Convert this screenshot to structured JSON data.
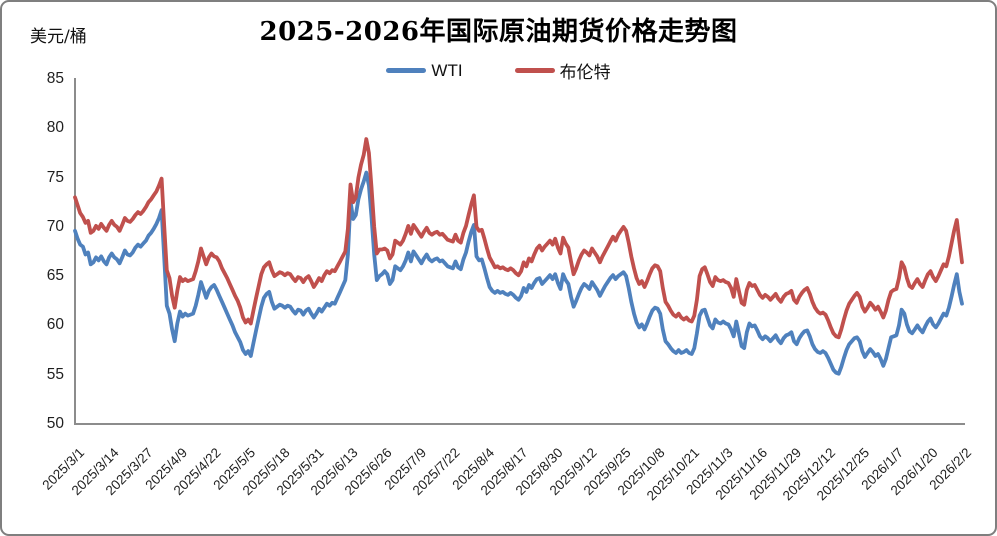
{
  "title": "2025-2026年国际原油期货价格走势图",
  "y_axis_unit_label": "美元/桶",
  "legend": [
    {
      "label": "WTI",
      "color": "#4F81BD"
    },
    {
      "label": "布伦特",
      "color": "#C0504D"
    }
  ],
  "colors": {
    "wti_line": "#4F81BD",
    "brent_line": "#C0504D",
    "axis": "#8C8C8C",
    "frame_border": "#7F7F7F",
    "text": "#1F1F1F"
  },
  "chart_data": {
    "type": "line",
    "title": "2025-2026年国际原油期货价格走势图",
    "ylabel": "美元/桶",
    "xlabel": "",
    "ylim": [
      50,
      85
    ],
    "y_ticks": [
      50,
      55,
      60,
      65,
      70,
      75,
      80,
      85
    ],
    "grid": false,
    "legend_position": "top-center",
    "x_start_date": "2025/3/1",
    "x_end_date": "2026/2/2",
    "x_resolution": "daily",
    "x_tick_interval_days": 13,
    "x_tick_labels": [
      "2025/3/1",
      "2025/3/14",
      "2025/3/27",
      "2025/4/9",
      "2025/4/22",
      "2025/5/5",
      "2025/5/18",
      "2025/5/31",
      "2025/6/13",
      "2025/6/26",
      "2025/7/9",
      "2025/7/22",
      "2025/8/4",
      "2025/8/17",
      "2025/8/30",
      "2025/9/12",
      "2025/9/25",
      "2025/10/8",
      "2025/10/21",
      "2025/11/3",
      "2025/11/16",
      "2025/11/29",
      "2025/12/12",
      "2025/12/25",
      "2026/1/7",
      "2026/1/20",
      "2026/2/2"
    ],
    "series": [
      {
        "name": "WTI",
        "color": "#4F81BD",
        "values": [
          69.6,
          68.8,
          68.2,
          68.0,
          67.2,
          67.4,
          66.2,
          66.4,
          66.9,
          66.6,
          67.0,
          66.5,
          66.2,
          66.9,
          67.3,
          66.9,
          66.7,
          66.3,
          66.9,
          67.6,
          67.2,
          67.1,
          67.4,
          67.9,
          68.2,
          68.0,
          68.3,
          68.6,
          69.1,
          69.4,
          69.8,
          70.3,
          70.9,
          71.7,
          66.9,
          62.0,
          61.2,
          59.6,
          58.4,
          60.2,
          61.4,
          60.9,
          61.2,
          61.0,
          61.1,
          61.2,
          62.0,
          63.1,
          64.4,
          63.6,
          62.8,
          63.5,
          63.9,
          64.1,
          63.6,
          63.0,
          62.4,
          61.8,
          61.2,
          60.6,
          60.0,
          59.3,
          58.8,
          58.3,
          57.5,
          57.1,
          57.4,
          56.9,
          58.2,
          59.5,
          60.7,
          61.9,
          62.8,
          63.2,
          63.4,
          62.4,
          61.7,
          61.9,
          62.1,
          62.0,
          61.8,
          62.0,
          61.9,
          61.5,
          61.2,
          61.6,
          61.5,
          61.1,
          61.5,
          61.7,
          61.2,
          60.8,
          61.2,
          61.7,
          61.4,
          61.8,
          62.2,
          62.0,
          62.3,
          62.2,
          62.8,
          63.4,
          64.0,
          64.6,
          67.2,
          72.6,
          70.8,
          71.2,
          72.8,
          73.8,
          74.6,
          75.5,
          74.2,
          71.0,
          67.2,
          64.6,
          65.0,
          65.2,
          65.5,
          65.2,
          64.2,
          64.6,
          66.0,
          65.8,
          65.6,
          66.0,
          66.6,
          67.4,
          66.5,
          67.5,
          67.1,
          66.7,
          66.3,
          66.8,
          67.2,
          66.7,
          66.5,
          66.7,
          66.8,
          66.5,
          66.6,
          66.3,
          66.0,
          65.9,
          65.8,
          66.5,
          65.9,
          65.7,
          66.7,
          67.4,
          68.5,
          69.5,
          70.2,
          67.0,
          66.6,
          66.7,
          65.8,
          64.8,
          63.9,
          63.5,
          63.3,
          63.5,
          63.3,
          63.4,
          63.2,
          63.1,
          63.3,
          63.1,
          62.8,
          62.6,
          63.0,
          63.8,
          63.4,
          64.1,
          63.8,
          64.3,
          64.7,
          64.8,
          64.2,
          64.5,
          64.8,
          65.1,
          64.7,
          65.2,
          64.3,
          63.7,
          65.2,
          64.6,
          64.2,
          62.9,
          61.9,
          62.5,
          63.2,
          63.8,
          64.2,
          64.0,
          63.7,
          64.4,
          64.0,
          63.6,
          63.0,
          63.5,
          64.0,
          64.4,
          64.8,
          65.1,
          64.7,
          65.0,
          65.2,
          65.4,
          65.0,
          63.8,
          62.4,
          61.2,
          60.3,
          59.8,
          60.1,
          59.6,
          60.2,
          60.9,
          61.5,
          61.8,
          61.7,
          61.2,
          59.6,
          58.4,
          58.1,
          57.7,
          57.4,
          57.2,
          57.5,
          57.2,
          57.3,
          57.5,
          57.2,
          57.1,
          57.7,
          59.2,
          61.0,
          61.5,
          61.6,
          60.8,
          60.0,
          59.7,
          60.6,
          60.3,
          60.2,
          60.4,
          60.2,
          60.1,
          59.6,
          58.9,
          60.4,
          59.2,
          57.9,
          57.7,
          59.3,
          60.2,
          59.9,
          60.0,
          59.5,
          58.9,
          58.6,
          58.9,
          58.7,
          58.4,
          58.7,
          59.0,
          58.5,
          58.2,
          58.7,
          59.0,
          59.1,
          59.3,
          58.4,
          58.1,
          58.7,
          59.1,
          59.4,
          59.5,
          58.9,
          58.1,
          57.6,
          57.3,
          57.2,
          57.4,
          57.2,
          56.7,
          56.1,
          55.5,
          55.2,
          55.1,
          55.8,
          56.7,
          57.5,
          58.1,
          58.4,
          58.7,
          58.8,
          58.4,
          57.4,
          56.8,
          57.2,
          57.6,
          57.3,
          56.9,
          57.1,
          56.6,
          55.9,
          56.6,
          57.7,
          58.8,
          58.9,
          59.0,
          60.0,
          61.6,
          61.2,
          60.1,
          59.4,
          59.2,
          59.6,
          60.0,
          59.6,
          59.3,
          59.9,
          60.4,
          60.7,
          60.1,
          59.8,
          60.2,
          60.7,
          61.2,
          61.0,
          61.8,
          62.9,
          64.1,
          65.2,
          63.4,
          62.2
        ]
      },
      {
        "name": "布伦特",
        "color": "#C0504D",
        "values": [
          73.0,
          72.2,
          71.4,
          71.0,
          70.4,
          70.6,
          69.4,
          69.6,
          70.1,
          69.8,
          70.3,
          69.9,
          69.6,
          70.2,
          70.6,
          70.2,
          70.0,
          69.6,
          70.2,
          70.9,
          70.6,
          70.5,
          70.8,
          71.2,
          71.5,
          71.3,
          71.6,
          72.0,
          72.5,
          72.8,
          73.2,
          73.6,
          74.2,
          74.9,
          70.1,
          65.6,
          64.8,
          63.0,
          61.8,
          63.5,
          64.9,
          64.5,
          64.7,
          64.5,
          64.6,
          64.7,
          65.5,
          66.5,
          67.8,
          67.0,
          66.2,
          66.9,
          67.3,
          67.0,
          66.9,
          66.5,
          65.8,
          65.3,
          64.8,
          64.2,
          63.6,
          63.0,
          62.5,
          61.8,
          60.8,
          60.3,
          60.6,
          60.2,
          61.5,
          62.8,
          64.0,
          65.2,
          65.9,
          66.2,
          66.4,
          65.6,
          65.0,
          65.2,
          65.4,
          65.3,
          65.1,
          65.3,
          65.2,
          64.8,
          64.5,
          64.9,
          64.8,
          64.4,
          64.8,
          65.0,
          64.5,
          63.9,
          64.3,
          64.8,
          64.5,
          65.1,
          65.5,
          65.3,
          65.6,
          65.5,
          66.0,
          66.5,
          67.0,
          67.5,
          69.8,
          74.3,
          72.5,
          73.0,
          75.0,
          76.3,
          77.3,
          78.9,
          77.5,
          74.0,
          70.0,
          67.3,
          67.7,
          67.7,
          67.8,
          67.6,
          66.8,
          67.2,
          68.6,
          68.4,
          68.2,
          68.6,
          69.3,
          70.1,
          69.3,
          70.2,
          69.8,
          69.4,
          69.0,
          69.5,
          69.9,
          69.4,
          69.2,
          69.4,
          69.5,
          69.2,
          69.3,
          69.0,
          68.7,
          68.6,
          68.5,
          69.2,
          68.6,
          68.4,
          69.4,
          70.1,
          71.2,
          72.3,
          73.2,
          70.0,
          69.6,
          69.7,
          68.8,
          67.8,
          66.9,
          66.4,
          65.9,
          66.0,
          65.8,
          65.9,
          65.7,
          65.6,
          65.8,
          65.6,
          65.3,
          65.1,
          65.5,
          66.4,
          66.0,
          66.8,
          66.5,
          67.2,
          67.8,
          68.1,
          67.6,
          68.0,
          68.3,
          68.6,
          68.2,
          68.8,
          67.9,
          67.3,
          68.9,
          68.3,
          67.9,
          66.5,
          65.2,
          65.8,
          66.6,
          67.2,
          67.6,
          67.4,
          67.1,
          67.8,
          67.4,
          67.0,
          66.4,
          67.0,
          67.5,
          68.0,
          68.5,
          69.0,
          68.6,
          69.2,
          69.6,
          70.0,
          69.6,
          68.4,
          67.0,
          65.8,
          64.8,
          64.2,
          64.5,
          63.9,
          64.5,
          65.2,
          65.8,
          66.1,
          66.0,
          65.5,
          63.8,
          62.4,
          62.0,
          61.5,
          61.1,
          60.9,
          61.2,
          60.8,
          60.6,
          60.8,
          60.5,
          60.4,
          61.0,
          62.6,
          65.0,
          65.7,
          65.9,
          65.2,
          64.4,
          64.0,
          64.9,
          64.6,
          64.5,
          64.6,
          64.4,
          64.3,
          63.8,
          62.9,
          64.7,
          63.5,
          62.3,
          62.1,
          63.6,
          64.3,
          64.0,
          64.1,
          63.6,
          63.1,
          62.8,
          63.1,
          62.9,
          62.6,
          62.9,
          63.2,
          62.7,
          62.4,
          62.9,
          63.2,
          63.3,
          63.5,
          62.6,
          62.3,
          62.9,
          63.3,
          63.6,
          63.8,
          63.2,
          62.4,
          61.8,
          61.4,
          61.2,
          61.3,
          61.1,
          60.5,
          59.8,
          59.2,
          58.9,
          58.8,
          59.6,
          60.6,
          61.5,
          62.2,
          62.6,
          63.0,
          63.3,
          62.9,
          61.9,
          61.4,
          61.8,
          62.3,
          62.0,
          61.6,
          61.9,
          61.4,
          60.8,
          61.5,
          62.6,
          63.4,
          63.6,
          63.7,
          64.8,
          66.4,
          65.9,
          64.8,
          64.0,
          63.8,
          64.3,
          64.7,
          64.2,
          63.9,
          64.6,
          65.2,
          65.5,
          64.9,
          64.5,
          65.0,
          65.6,
          66.2,
          66.0,
          67.0,
          68.3,
          69.6,
          70.7,
          68.5,
          66.4
        ]
      }
    ]
  }
}
